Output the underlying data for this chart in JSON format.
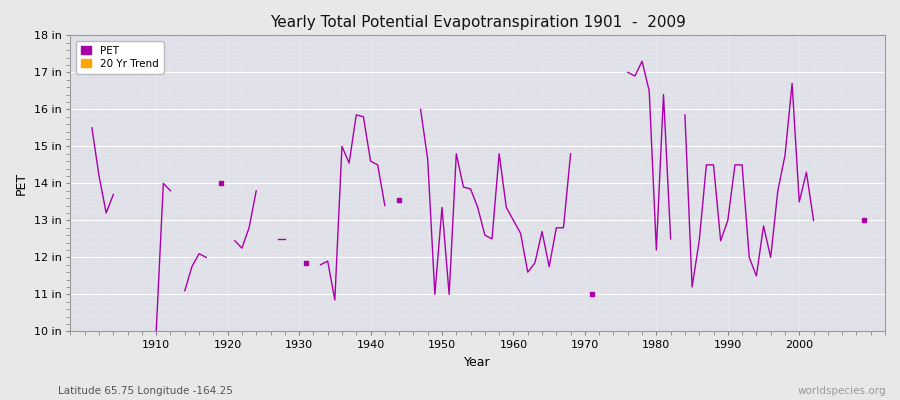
{
  "title": "Yearly Total Potential Evapotranspiration 1901  -  2009",
  "xlabel": "Year",
  "ylabel": "PET",
  "pet_color": "#aa00aa",
  "trend_color": "#FFA500",
  "bg_color": "#e8e8e8",
  "plot_bg_color": "#e0e0e8",
  "grid_color": "#ffffff",
  "ylim": [
    10,
    18
  ],
  "xlim": [
    1898,
    2012
  ],
  "ytick_values": [
    10,
    11,
    12,
    13,
    14,
    15,
    16,
    17,
    18
  ],
  "ytick_labels": [
    "10 in",
    "11 in",
    "12 in",
    "13 in",
    "14 in",
    "15 in",
    "16 in",
    "17 in",
    "18 in"
  ],
  "xtick_values": [
    1910,
    1920,
    1930,
    1940,
    1950,
    1960,
    1970,
    1980,
    1990,
    2000
  ],
  "subtitle": "Latitude 65.75 Longitude -164.25",
  "watermark": "worldspecies.org",
  "pet_data": {
    "1901": 15.5,
    "1902": 14.2,
    "1903": 13.2,
    "1904": 13.7,
    "1910": 10.0,
    "1911": 14.0,
    "1912": 13.8,
    "1914": 11.1,
    "1915": 11.75,
    "1916": 12.1,
    "1917": 12.0,
    "1919": 14.0,
    "1921": 12.45,
    "1922": 12.25,
    "1923": 12.8,
    "1924": 13.8,
    "1927": 12.5,
    "1928": 12.5,
    "1931": 11.85,
    "1933": 11.8,
    "1934": 11.9,
    "1935": 10.85,
    "1936": 15.0,
    "1937": 14.55,
    "1938": 15.85,
    "1939": 15.8,
    "1940": 14.6,
    "1941": 14.5,
    "1942": 13.4,
    "1944": 13.55,
    "1947": 16.0,
    "1948": 14.65,
    "1949": 11.0,
    "1950": 13.35,
    "1951": 11.0,
    "1952": 14.8,
    "1953": 13.9,
    "1954": 13.85,
    "1955": 13.35,
    "1956": 12.6,
    "1957": 12.5,
    "1958": 14.8,
    "1959": 13.35,
    "1960": 13.0,
    "1961": 12.65,
    "1962": 11.6,
    "1963": 11.85,
    "1964": 12.7,
    "1965": 11.75,
    "1966": 12.8,
    "1967": 12.8,
    "1968": 14.8,
    "1971": 11.0,
    "1976": 17.0,
    "1977": 16.9,
    "1978": 17.3,
    "1979": 16.5,
    "1980": 12.2,
    "1981": 16.4,
    "1982": 12.5,
    "1984": 15.85,
    "1985": 11.2,
    "1986": 12.45,
    "1987": 14.5,
    "1988": 14.5,
    "1989": 12.45,
    "1990": 13.0,
    "1991": 14.5,
    "1992": 14.5,
    "1993": 12.0,
    "1994": 11.5,
    "1995": 12.85,
    "1996": 12.0,
    "1997": 13.8,
    "1998": 14.75,
    "1999": 16.7,
    "2000": 13.5,
    "2001": 14.3,
    "2002": 13.0,
    "2009": 13.0
  }
}
